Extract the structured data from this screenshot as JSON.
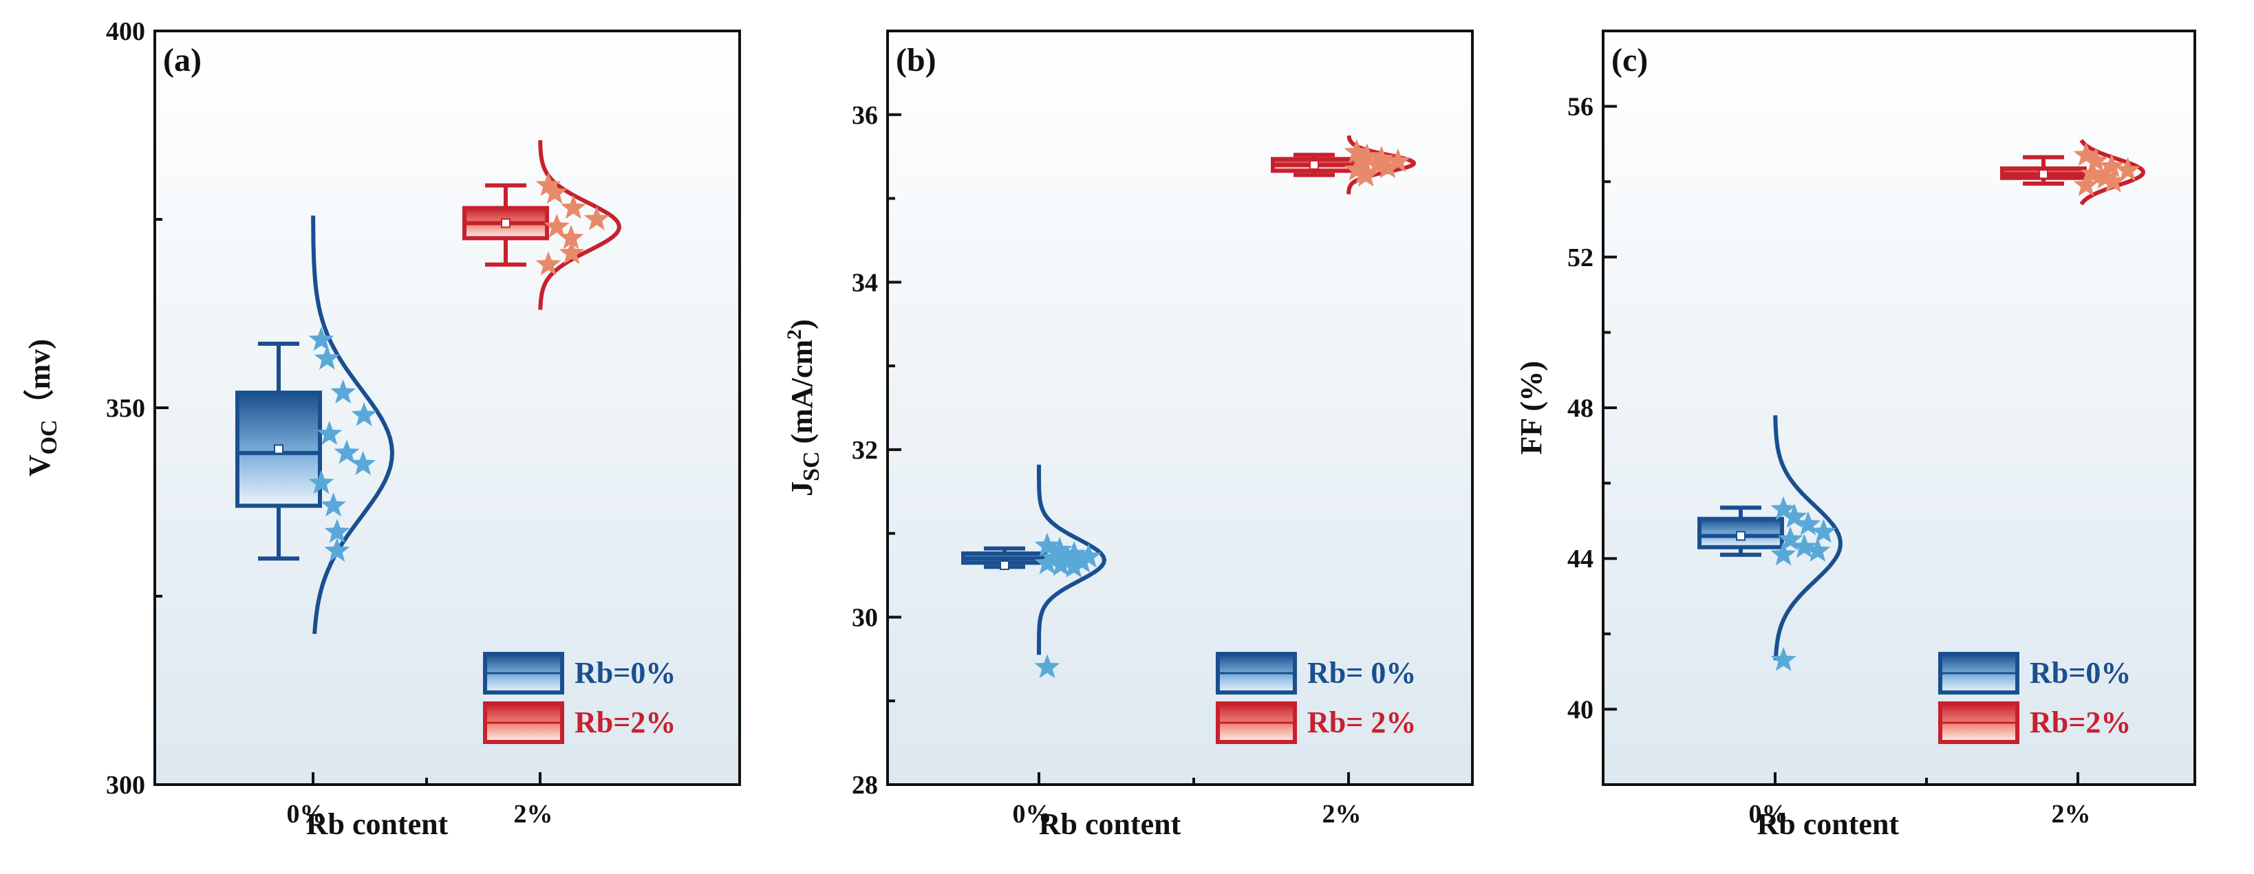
{
  "colors": {
    "blue": "#1a4f8f",
    "blue_light": "#5aa8d8",
    "red": "#c8202e",
    "red_light": "#e88a6a",
    "panel_bg_top": "#ffffff",
    "panel_bg_bottom": "#dde8f0"
  },
  "chart_data": [
    {
      "type": "box",
      "panel_label": "(a)",
      "ylabel_main": "V",
      "ylabel_sub": "OC",
      "ylabel_unit": "（mv)",
      "xlabel": "Rb content",
      "categories": [
        "0%",
        "2%"
      ],
      "ylim": [
        300,
        400
      ],
      "yticks": [
        300,
        350,
        400
      ],
      "minor_yticks": [
        325,
        375
      ],
      "series": [
        {
          "name": "Rb=0%",
          "box": {
            "min": 330,
            "q1": 337,
            "median": 344,
            "mean": 344.5,
            "q3": 352,
            "max": 358.5
          },
          "points": [
            359,
            356.5,
            352,
            349,
            346.5,
            344,
            342.5,
            340,
            337,
            333.5,
            331
          ],
          "dist": {
            "mu": 344,
            "sigma": 8.5,
            "range": [
              320,
              375.5
            ]
          }
        },
        {
          "name": "Rb=2%",
          "box": {
            "min": 369,
            "q1": 372.5,
            "median": 374.5,
            "mean": 374.5,
            "q3": 376.5,
            "max": 379.5
          },
          "points": [
            379.5,
            378.5,
            376.5,
            375,
            374,
            372.5,
            370.5,
            369
          ],
          "dist": {
            "mu": 374,
            "sigma": 3.2,
            "range": [
              363,
              385.5
            ]
          }
        }
      ],
      "legend": [
        "Rb=0%",
        "Rb=2%"
      ],
      "legend_position": "bottom-right"
    },
    {
      "type": "box",
      "panel_label": "(b)",
      "ylabel_main": "J",
      "ylabel_sub": "SC",
      "ylabel_unit": " (mA/cm",
      "ylabel_sup": "2",
      "ylabel_end": ")",
      "xlabel": "Rb content",
      "categories": [
        "0%",
        "2%"
      ],
      "ylim": [
        28,
        37
      ],
      "yticks": [
        28,
        30,
        32,
        34,
        36
      ],
      "minor_yticks": [
        29,
        31,
        33,
        35,
        37
      ],
      "series": [
        {
          "name": "Rb= 0%",
          "box": {
            "min": 30.6,
            "q1": 30.65,
            "median": 30.7,
            "mean": 30.62,
            "q3": 30.76,
            "max": 30.82
          },
          "points": [
            30.85,
            30.8,
            30.75,
            30.72,
            30.7,
            30.68,
            30.66,
            30.64,
            30.62,
            30.6,
            29.4
          ],
          "dist": {
            "mu": 30.68,
            "sigma": 0.25,
            "range": [
              29.55,
              31.82
            ]
          }
        },
        {
          "name": "Rb= 2%",
          "box": {
            "min": 35.28,
            "q1": 35.33,
            "median": 35.4,
            "mean": 35.4,
            "q3": 35.47,
            "max": 35.52
          },
          "points": [
            35.55,
            35.5,
            35.47,
            35.44,
            35.42,
            35.4,
            35.37,
            35.34,
            35.3,
            35.27
          ],
          "dist": {
            "mu": 35.42,
            "sigma": 0.1,
            "range": [
              35.05,
              35.75
            ]
          }
        }
      ],
      "legend": [
        "Rb= 0%",
        "Rb= 2%"
      ],
      "legend_position": "bottom-right"
    },
    {
      "type": "box",
      "panel_label": "(c)",
      "ylabel_main": "FF (%)",
      "xlabel": "Rb content",
      "categories": [
        "0%",
        "2%"
      ],
      "ylim": [
        38,
        58
      ],
      "yticks": [
        40,
        44,
        48,
        52,
        56
      ],
      "minor_yticks": [
        38,
        42,
        46,
        50,
        54,
        58
      ],
      "series": [
        {
          "name": "Rb=0%",
          "box": {
            "min": 44.1,
            "q1": 44.3,
            "median": 44.6,
            "mean": 44.6,
            "q3": 45.05,
            "max": 45.35
          },
          "points": [
            45.3,
            45.1,
            44.9,
            44.7,
            44.5,
            44.3,
            44.2,
            44.1,
            41.3
          ],
          "dist": {
            "mu": 44.4,
            "sigma": 1.0,
            "range": [
              41.3,
              47.8
            ]
          }
        },
        {
          "name": "Rb=2%",
          "box": {
            "min": 53.95,
            "q1": 54.1,
            "median": 54.2,
            "mean": 54.2,
            "q3": 54.35,
            "max": 54.65
          },
          "points": [
            54.7,
            54.55,
            54.4,
            54.3,
            54.2,
            54.1,
            54.0,
            53.9
          ],
          "dist": {
            "mu": 54.25,
            "sigma": 0.35,
            "range": [
              53.4,
              55.1
            ]
          }
        }
      ],
      "legend": [
        "Rb=0%",
        "Rb=2%"
      ],
      "legend_position": "bottom-right"
    }
  ]
}
